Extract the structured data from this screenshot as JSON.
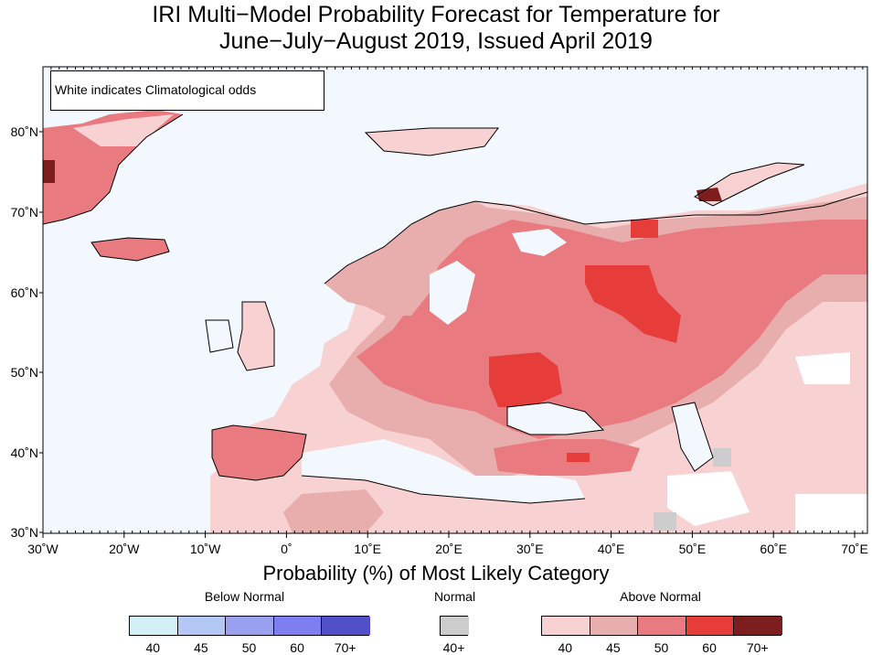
{
  "title": {
    "line1": "IRI Multi−Model Probability Forecast for Temperature for",
    "line2": "June−July−August 2019, Issued April 2019"
  },
  "note": "White indicates Climatological odds",
  "axes": {
    "lat_labels": [
      "80˚N",
      "70˚N",
      "60˚N",
      "50˚N",
      "40˚N",
      "30˚N"
    ],
    "lon_labels": [
      "30˚W",
      "20˚W",
      "10˚W",
      "0˚",
      "10˚E",
      "20˚E",
      "30˚E",
      "40˚E",
      "50˚E",
      "60˚E",
      "70˚E"
    ]
  },
  "legend": {
    "xlabel": "Probability (%) of Most Likely Category",
    "below": {
      "label": "Below Normal",
      "ticks": [
        "40",
        "45",
        "50",
        "60",
        "70+"
      ],
      "colors": [
        "#d2f0f5",
        "#b4c8f5",
        "#9aa0f0",
        "#7f7ef0",
        "#5250c8"
      ]
    },
    "normal": {
      "label": "Normal",
      "ticks": [
        "40+"
      ],
      "colors": [
        "#cdcdcd"
      ]
    },
    "above": {
      "label": "Above Normal",
      "ticks": [
        "40",
        "45",
        "50",
        "60",
        "70+"
      ],
      "colors": [
        "#f8d2d2",
        "#e8aeae",
        "#e87a80",
        "#e63c3a",
        "#7c1e1e"
      ]
    }
  },
  "colors": {
    "ocean": "#f2f8fd",
    "coast": "#000000",
    "border": "#9a9a9a"
  }
}
